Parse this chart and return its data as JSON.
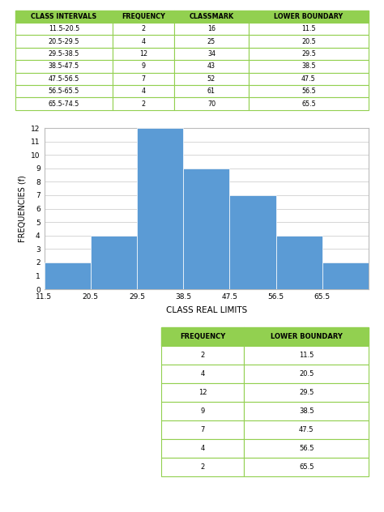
{
  "table1_headers": [
    "CLASS INTERVALS",
    "FREQUENCY",
    "CLASSMARK",
    "LOWER BOUNDARY"
  ],
  "table1_rows": [
    [
      "11.5-20.5",
      "2",
      "16",
      "11.5"
    ],
    [
      "20.5-29.5",
      "4",
      "25",
      "20.5"
    ],
    [
      "29.5-38.5",
      "12",
      "34",
      "29.5"
    ],
    [
      "38.5-47.5",
      "9",
      "43",
      "38.5"
    ],
    [
      "47.5-56.5",
      "7",
      "52",
      "47.5"
    ],
    [
      "56.5-65.5",
      "4",
      "61",
      "56.5"
    ],
    [
      "65.5-74.5",
      "2",
      "70",
      "65.5"
    ]
  ],
  "header_bg": "#92D050",
  "header_text": "#000000",
  "table_border": "#92D050",
  "hist_frequencies": [
    2,
    4,
    12,
    9,
    7,
    4,
    2
  ],
  "hist_boundaries": [
    11.5,
    20.5,
    29.5,
    38.5,
    47.5,
    56.5,
    65.5,
    74.5
  ],
  "hist_xticks": [
    11.5,
    20.5,
    29.5,
    38.5,
    47.5,
    56.5,
    65.5
  ],
  "hist_bar_color": "#5B9BD5",
  "hist_ylabel": "FREQUENCIES (f)",
  "hist_xlabel": "CLASS REAL LIMITS",
  "hist_ylim": [
    0,
    12
  ],
  "hist_yticks": [
    0,
    1,
    2,
    3,
    4,
    5,
    6,
    7,
    8,
    9,
    10,
    11,
    12
  ],
  "table2_headers": [
    "FREQUENCY",
    "LOWER BOUNDARY"
  ],
  "table2_rows": [
    [
      "2",
      "11.5"
    ],
    [
      "4",
      "20.5"
    ],
    [
      "12",
      "29.5"
    ],
    [
      "9",
      "38.5"
    ],
    [
      "7",
      "47.5"
    ],
    [
      "4",
      "56.5"
    ],
    [
      "2",
      "65.5"
    ]
  ],
  "bg_color": "#ffffff"
}
